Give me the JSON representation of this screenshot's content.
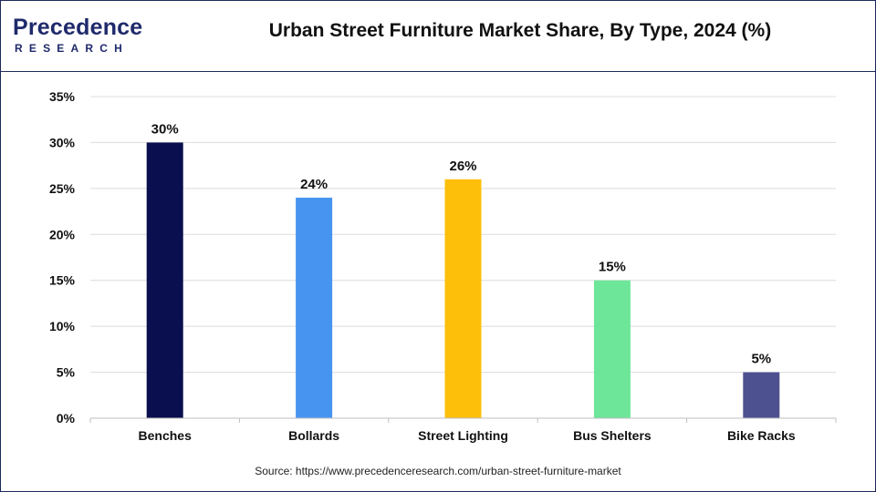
{
  "brand": {
    "name_lead": "P",
    "name_rest": "recedence",
    "name_sub": "RESEARCH"
  },
  "source": "Source: https://www.precedenceresearch.com/urban-street-furniture-market",
  "colors": {
    "frame": "#1f2a5a",
    "brand": "#1f2a6b",
    "grid": "#dcdcdc",
    "axis": "#bfbfbf"
  },
  "chart_data": {
    "type": "bar",
    "title": "Urban Street Furniture Market Share, By Type, 2024 (%)",
    "categories": [
      "Benches",
      "Bollards",
      "Street Lighting",
      "Bus Shelters",
      "Bike Racks"
    ],
    "values": [
      30,
      24,
      26,
      15,
      5
    ],
    "data_labels": [
      "30%",
      "24%",
      "26%",
      "15%",
      "5%"
    ],
    "bar_colors": [
      "#0a0f4f",
      "#4794f0",
      "#fdbf0a",
      "#6ee69a",
      "#4e5190"
    ],
    "yticks": [
      "0%",
      "5%",
      "10%",
      "15%",
      "20%",
      "25%",
      "30%",
      "35%"
    ],
    "ytick_values": [
      0,
      5,
      10,
      15,
      20,
      25,
      30,
      35
    ],
    "ylim": [
      0,
      35
    ],
    "xlabel": "",
    "ylabel": "",
    "grid": true,
    "legend": "none"
  }
}
